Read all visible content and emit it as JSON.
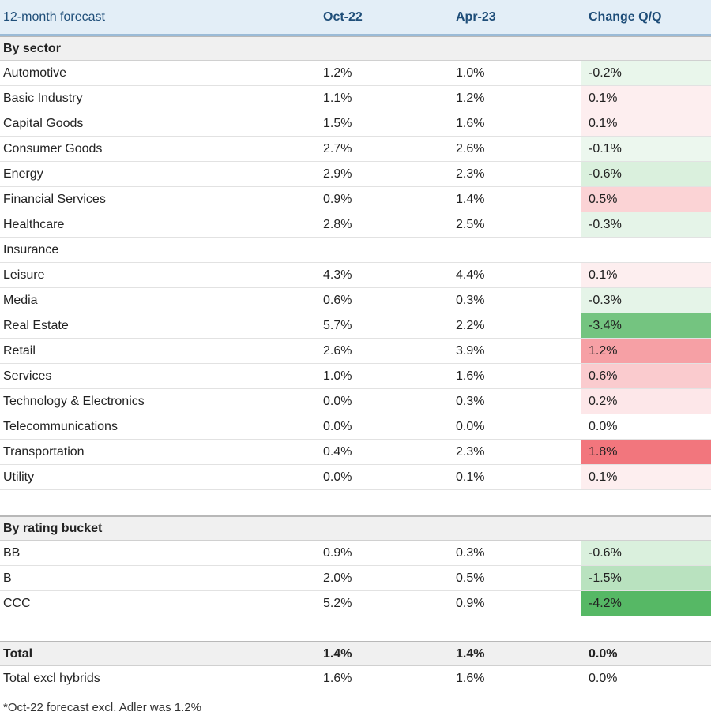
{
  "chart_data": {
    "type": "table",
    "columns": [
      "12-month forecast",
      "Oct-22",
      "Apr-23",
      "Change Q/Q"
    ],
    "sections": [
      {
        "title": "By sector",
        "rows": [
          {
            "label": "Automotive",
            "oct22": "1.2%",
            "apr23": "1.0%",
            "change": "-0.2%",
            "change_value": -0.2
          },
          {
            "label": "Basic Industry",
            "oct22": "1.1%",
            "apr23": "1.2%",
            "change": "0.1%",
            "change_value": 0.1
          },
          {
            "label": "Capital Goods",
            "oct22": "1.5%",
            "apr23": "1.6%",
            "change": "0.1%",
            "change_value": 0.1
          },
          {
            "label": "Consumer Goods",
            "oct22": "2.7%",
            "apr23": "2.6%",
            "change": "-0.1%",
            "change_value": -0.1
          },
          {
            "label": "Energy",
            "oct22": "2.9%",
            "apr23": "2.3%",
            "change": "-0.6%",
            "change_value": -0.6
          },
          {
            "label": "Financial Services",
            "oct22": "0.9%",
            "apr23": "1.4%",
            "change": "0.5%",
            "change_value": 0.5
          },
          {
            "label": "Healthcare",
            "oct22": "2.8%",
            "apr23": "2.5%",
            "change": "-0.3%",
            "change_value": -0.3
          },
          {
            "label": "Insurance",
            "oct22": "",
            "apr23": "",
            "change": "",
            "change_value": null
          },
          {
            "label": "Leisure",
            "oct22": "4.3%",
            "apr23": "4.4%",
            "change": "0.1%",
            "change_value": 0.1
          },
          {
            "label": "Media",
            "oct22": "0.6%",
            "apr23": "0.3%",
            "change": "-0.3%",
            "change_value": -0.3
          },
          {
            "label": "Real Estate",
            "oct22": "5.7%",
            "apr23": "2.2%",
            "change": "-3.4%",
            "change_value": -3.4
          },
          {
            "label": "Retail",
            "oct22": "2.6%",
            "apr23": "3.9%",
            "change": "1.2%",
            "change_value": 1.2
          },
          {
            "label": "Services",
            "oct22": "1.0%",
            "apr23": "1.6%",
            "change": "0.6%",
            "change_value": 0.6
          },
          {
            "label": "Technology & Electronics",
            "oct22": "0.0%",
            "apr23": "0.3%",
            "change": "0.2%",
            "change_value": 0.2
          },
          {
            "label": "Telecommunications",
            "oct22": "0.0%",
            "apr23": "0.0%",
            "change": "0.0%",
            "change_value": 0.0
          },
          {
            "label": "Transportation",
            "oct22": "0.4%",
            "apr23": "2.3%",
            "change": "1.8%",
            "change_value": 1.8
          },
          {
            "label": "Utility",
            "oct22": "0.0%",
            "apr23": "0.1%",
            "change": "0.1%",
            "change_value": 0.1
          }
        ]
      },
      {
        "title": "By rating bucket",
        "rows": [
          {
            "label": "BB",
            "oct22": "0.9%",
            "apr23": "0.3%",
            "change": "-0.6%",
            "change_value": -0.6
          },
          {
            "label": "B",
            "oct22": "2.0%",
            "apr23": "0.5%",
            "change": "-1.5%",
            "change_value": -1.5
          },
          {
            "label": "CCC",
            "oct22": "5.2%",
            "apr23": "0.9%",
            "change": "-4.2%",
            "change_value": -4.2
          }
        ]
      }
    ],
    "totals": [
      {
        "label": "Total",
        "oct22": "1.4%",
        "apr23": "1.4%",
        "change": "0.0%",
        "change_value": 0.0,
        "bold": true
      },
      {
        "label": "Total excl hybrids",
        "oct22": "1.6%",
        "apr23": "1.6%",
        "change": "0.0%",
        "change_value": 0.0,
        "bold": false
      }
    ],
    "footnote": "*Oct-22 forecast excl. Adler was 1.2%"
  }
}
